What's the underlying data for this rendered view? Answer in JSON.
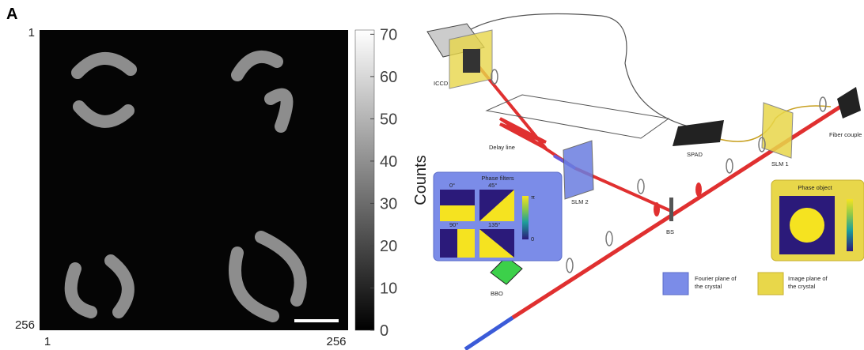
{
  "panel_label": "A",
  "image": {
    "x_labels": [
      "1",
      "256"
    ],
    "y_labels": [
      "1",
      "256"
    ]
  },
  "colorbar": {
    "label": "Counts",
    "lim": [
      0,
      71
    ],
    "ticks": [
      0,
      10,
      20,
      30,
      40,
      50,
      60,
      70
    ]
  },
  "setup": {
    "labels": {
      "iccd": "ICCD",
      "delay_line": "Delay line",
      "spad": "SPAD",
      "fiber_coupler": "Fiber couple",
      "slm1": "SLM 1",
      "slm2": "SLM 2",
      "bs": "BS",
      "bbo": "BBO"
    },
    "phase_filters": {
      "title": "Phase filters",
      "angles": [
        "0°",
        "45°",
        "90°",
        "135°"
      ],
      "scale": [
        "π",
        "0"
      ]
    },
    "phase_object": {
      "title": "Phase object"
    },
    "legend": [
      {
        "lines": [
          "Fourier plane of",
          "the crystal"
        ]
      },
      {
        "lines": [
          "Image plane of",
          "the crystal"
        ]
      }
    ]
  }
}
